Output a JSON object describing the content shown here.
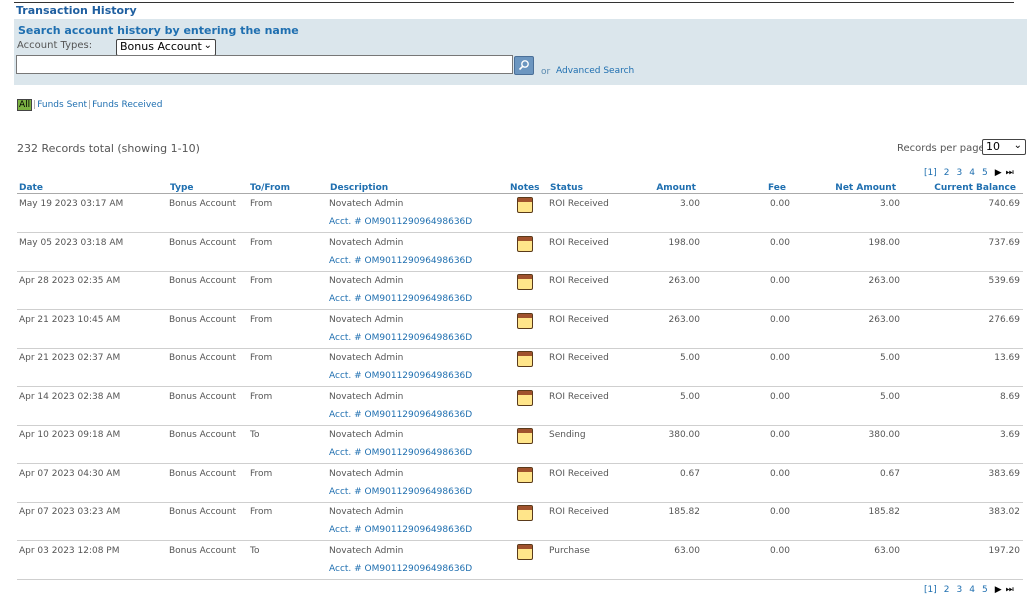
{
  "page_title": "Transaction History",
  "search": {
    "heading": "Search account history by entering the name",
    "account_types_label": "Account Types:",
    "account_type_value": "Bonus Account",
    "input_value": "",
    "or": "or",
    "advanced_search": "Advanced Search"
  },
  "filters": {
    "all": "All",
    "sent": "Funds Sent",
    "received": "Funds Received"
  },
  "records_total": "232 Records total (showing 1-10)",
  "records_per_page_label": "Records per page",
  "records_per_page_value": "10",
  "pager": {
    "p1": "[1]",
    "p2": "2",
    "p3": "3",
    "p4": "4",
    "p5": "5",
    "next": "▶",
    "last": "⏭"
  },
  "columns": {
    "date": "Date",
    "type": "Type",
    "tofrom": "To/From",
    "description": "Description",
    "notes": "Notes",
    "status": "Status",
    "amount": "Amount",
    "fee": "Fee",
    "net": "Net Amount",
    "balance": "Current Balance"
  },
  "rows": [
    {
      "date": "May 19 2023 03:17 AM",
      "type": "Bonus Account",
      "tofrom": "From",
      "desc": "Novatech Admin",
      "acct": "Acct. # OM901129096498636D",
      "status": "ROI Received",
      "amount": "3.00",
      "fee": "0.00",
      "net": "3.00",
      "balance": "740.69"
    },
    {
      "date": "May 05 2023 03:18 AM",
      "type": "Bonus Account",
      "tofrom": "From",
      "desc": "Novatech Admin",
      "acct": "Acct. # OM901129096498636D",
      "status": "ROI Received",
      "amount": "198.00",
      "fee": "0.00",
      "net": "198.00",
      "balance": "737.69"
    },
    {
      "date": "Apr 28 2023 02:35 AM",
      "type": "Bonus Account",
      "tofrom": "From",
      "desc": "Novatech Admin",
      "acct": "Acct. # OM901129096498636D",
      "status": "ROI Received",
      "amount": "263.00",
      "fee": "0.00",
      "net": "263.00",
      "balance": "539.69"
    },
    {
      "date": "Apr 21 2023 10:45 AM",
      "type": "Bonus Account",
      "tofrom": "From",
      "desc": "Novatech Admin",
      "acct": "Acct. # OM901129096498636D",
      "status": "ROI Received",
      "amount": "263.00",
      "fee": "0.00",
      "net": "263.00",
      "balance": "276.69"
    },
    {
      "date": "Apr 21 2023 02:37 AM",
      "type": "Bonus Account",
      "tofrom": "From",
      "desc": "Novatech Admin",
      "acct": "Acct. # OM901129096498636D",
      "status": "ROI Received",
      "amount": "5.00",
      "fee": "0.00",
      "net": "5.00",
      "balance": "13.69"
    },
    {
      "date": "Apr 14 2023 02:38 AM",
      "type": "Bonus Account",
      "tofrom": "From",
      "desc": "Novatech Admin",
      "acct": "Acct. # OM901129096498636D",
      "status": "ROI Received",
      "amount": "5.00",
      "fee": "0.00",
      "net": "5.00",
      "balance": "8.69"
    },
    {
      "date": "Apr 10 2023 09:18 AM",
      "type": "Bonus Account",
      "tofrom": "To",
      "desc": "Novatech Admin",
      "acct": "Acct. # OM901129096498636D",
      "status": "Sending",
      "amount": "380.00",
      "fee": "0.00",
      "net": "380.00",
      "balance": "3.69"
    },
    {
      "date": "Apr 07 2023 04:30 AM",
      "type": "Bonus Account",
      "tofrom": "From",
      "desc": "Novatech Admin",
      "acct": "Acct. # OM901129096498636D",
      "status": "ROI Received",
      "amount": "0.67",
      "fee": "0.00",
      "net": "0.67",
      "balance": "383.69"
    },
    {
      "date": "Apr 07 2023 03:23 AM",
      "type": "Bonus Account",
      "tofrom": "From",
      "desc": "Novatech Admin",
      "acct": "Acct. # OM901129096498636D",
      "status": "ROI Received",
      "amount": "185.82",
      "fee": "0.00",
      "net": "185.82",
      "balance": "383.02"
    },
    {
      "date": "Apr 03 2023 12:08 PM",
      "type": "Bonus Account",
      "tofrom": "To",
      "desc": "Novatech Admin",
      "acct": "Acct. # OM901129096498636D",
      "status": "Purchase",
      "amount": "63.00",
      "fee": "0.00",
      "net": "63.00",
      "balance": "197.20"
    }
  ]
}
